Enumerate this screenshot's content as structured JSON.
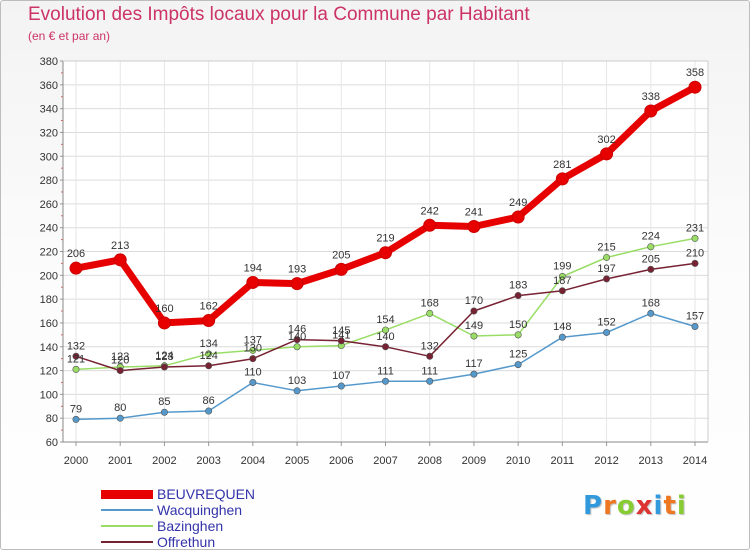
{
  "chart_data": {
    "type": "line",
    "title": "Evolution des Impôts locaux pour la Commune par Habitant",
    "subtitle": "(en € et par an)",
    "xlabel": "",
    "ylabel": "",
    "x": [
      "2000",
      "2001",
      "2002",
      "2003",
      "2004",
      "2005",
      "2006",
      "2007",
      "2008",
      "2009",
      "2010",
      "2011",
      "2012",
      "2013",
      "2014"
    ],
    "ylim": [
      60,
      380
    ],
    "yticks": [
      60,
      80,
      100,
      120,
      140,
      160,
      180,
      200,
      220,
      240,
      260,
      280,
      300,
      320,
      340,
      360,
      380
    ],
    "grid": true,
    "legend": "bottom-left",
    "series": [
      {
        "name": "BEUVREQUEN",
        "color": "#e60000",
        "values": [
          206,
          213,
          160,
          162,
          194,
          193,
          205,
          219,
          242,
          241,
          249,
          281,
          302,
          338,
          358
        ]
      },
      {
        "name": "Wacquinghen",
        "color": "#5599cc",
        "values": [
          79,
          80,
          85,
          86,
          110,
          103,
          107,
          111,
          111,
          117,
          125,
          148,
          152,
          168,
          157
        ]
      },
      {
        "name": "Bazinghen",
        "color": "#99dd66",
        "values": [
          121,
          123,
          124,
          134,
          137,
          140,
          141,
          154,
          168,
          149,
          150,
          199,
          215,
          224,
          231
        ]
      },
      {
        "name": "Offrethun",
        "color": "#772233",
        "values": [
          132,
          120,
          123,
          124,
          130,
          146,
          145,
          140,
          132,
          170,
          183,
          187,
          197,
          205,
          210
        ]
      }
    ]
  },
  "logo": {
    "text": "Proxiti",
    "letters": [
      "P",
      "r",
      "o",
      "x",
      "i",
      "t",
      "i"
    ],
    "colors": [
      "#3399dd",
      "#ee7722",
      "#88cc33",
      "#dd3333",
      "#3399dd",
      "#ee7722",
      "#88cc33"
    ]
  }
}
